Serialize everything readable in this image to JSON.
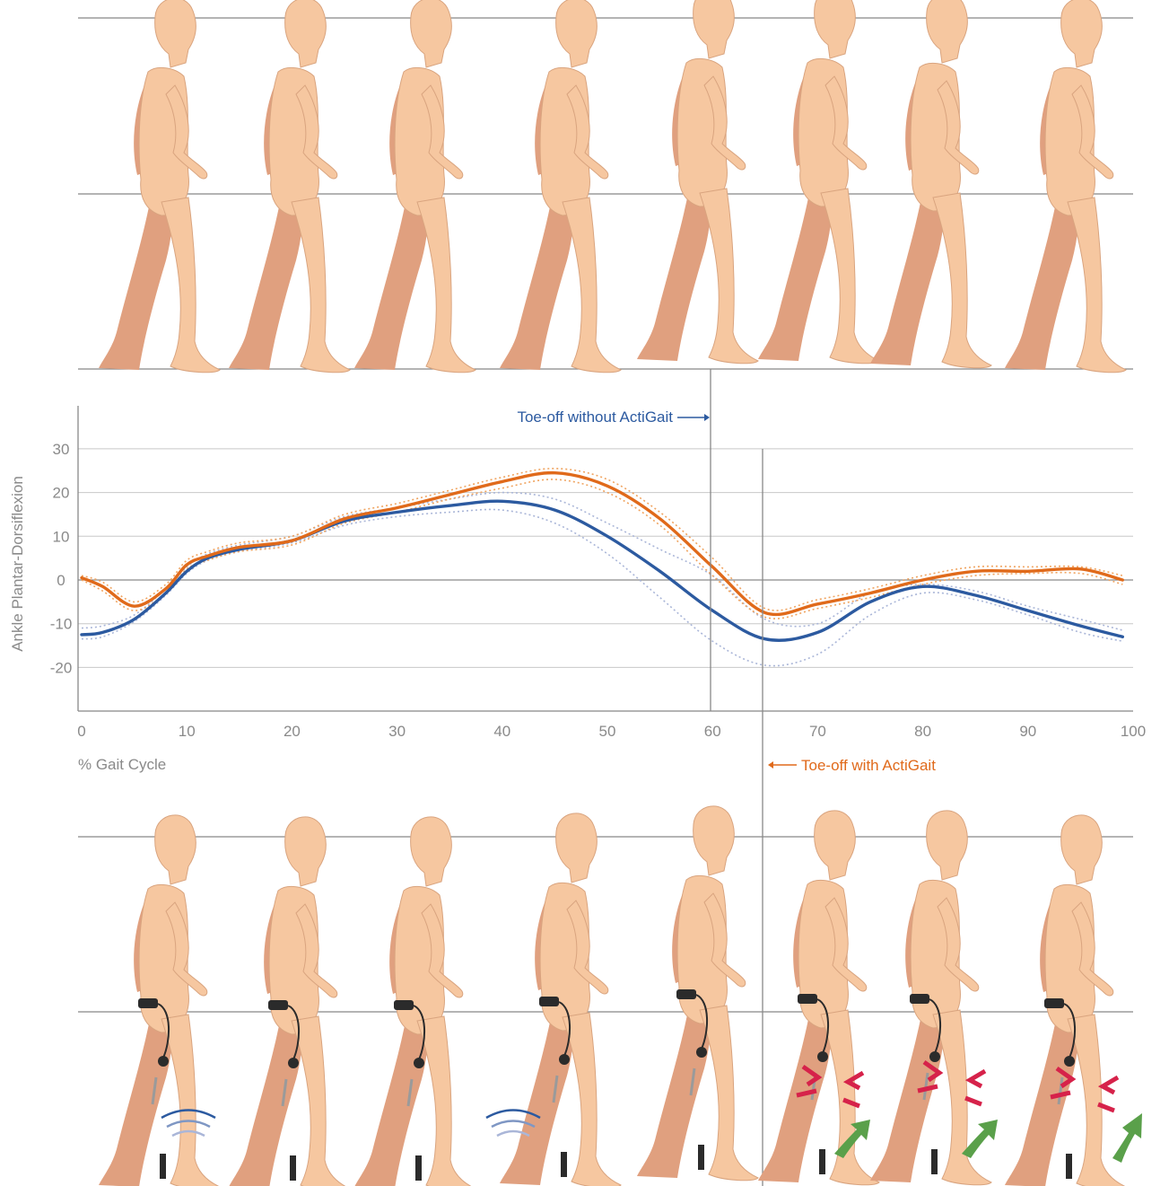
{
  "colors": {
    "without_actigait": "#2c5aa0",
    "with_actigait": "#e06a1b",
    "band_without": "#aab6d8",
    "band_with": "#f0a460",
    "skin": "#f6c7a0",
    "skin_back": "#e0a07f",
    "stimulation_arrow": "#5aa04a",
    "pain_mark": "#d6224a"
  },
  "chart_data": {
    "type": "line",
    "ylabel": "Ankle Plantar-Dorsiflexion",
    "xlabel": "% Gait Cycle",
    "xlim": [
      0,
      100
    ],
    "ylim": [
      -30,
      40
    ],
    "xticks": [
      0,
      10,
      20,
      30,
      40,
      50,
      60,
      70,
      80,
      90,
      100
    ],
    "yticks": [
      -20,
      -10,
      0,
      10,
      20,
      30
    ],
    "grid": true,
    "x": [
      0,
      2,
      5,
      8,
      10,
      12,
      15,
      20,
      25,
      30,
      35,
      40,
      45,
      50,
      55,
      60,
      65,
      70,
      75,
      80,
      85,
      90,
      95,
      99
    ],
    "series": [
      {
        "key": "without",
        "values": [
          -12.5,
          -12,
          -9,
          -3,
          2,
          5,
          7,
          9,
          13.5,
          15.5,
          17,
          18,
          16,
          10,
          2,
          -7,
          -13.5,
          -12,
          -5,
          -1.5,
          -3.5,
          -7,
          -10.5,
          -13
        ],
        "lower": [
          -13.5,
          -13,
          -9.5,
          -3.5,
          1.5,
          4.5,
          6.5,
          8.5,
          12.5,
          14.5,
          15.5,
          16,
          13,
          6,
          -4,
          -14,
          -19.5,
          -17,
          -8,
          -3,
          -4.5,
          -8,
          -12,
          -14
        ],
        "upper": [
          -11,
          -10.5,
          -8,
          -2,
          3,
          6,
          8,
          10,
          14.5,
          16.5,
          18.5,
          20,
          18.5,
          13,
          7,
          1,
          -9,
          -10,
          -3,
          -1,
          -2.5,
          -6,
          -9,
          -11.5
        ]
      },
      {
        "key": "with",
        "values": [
          0.5,
          -1.5,
          -6,
          -2,
          3.5,
          5.5,
          7.5,
          9,
          14,
          16.5,
          19.5,
          22.5,
          24.5,
          21.5,
          14,
          3,
          -7.5,
          -5.5,
          -3,
          0,
          2,
          2,
          2.5,
          0
        ],
        "lower": [
          0,
          -2.5,
          -7,
          -3,
          2.5,
          4.5,
          6.5,
          8,
          13,
          15.5,
          18.5,
          21,
          23,
          20,
          12.5,
          1,
          -8.5,
          -6.5,
          -4,
          -1,
          1,
          1.5,
          1.5,
          -1
        ],
        "upper": [
          1,
          -0.5,
          -5,
          -1,
          4.5,
          6.5,
          8.5,
          10,
          15,
          17.5,
          20.5,
          23.5,
          25.5,
          23,
          15.5,
          5,
          -6.5,
          -4.5,
          -2,
          1,
          3,
          3,
          3,
          1
        ]
      }
    ],
    "annotations": [
      {
        "text": "Toe-off without ActiGait",
        "x": 60
      },
      {
        "text": "Toe-off with ActiGait",
        "x": 65
      }
    ]
  }
}
